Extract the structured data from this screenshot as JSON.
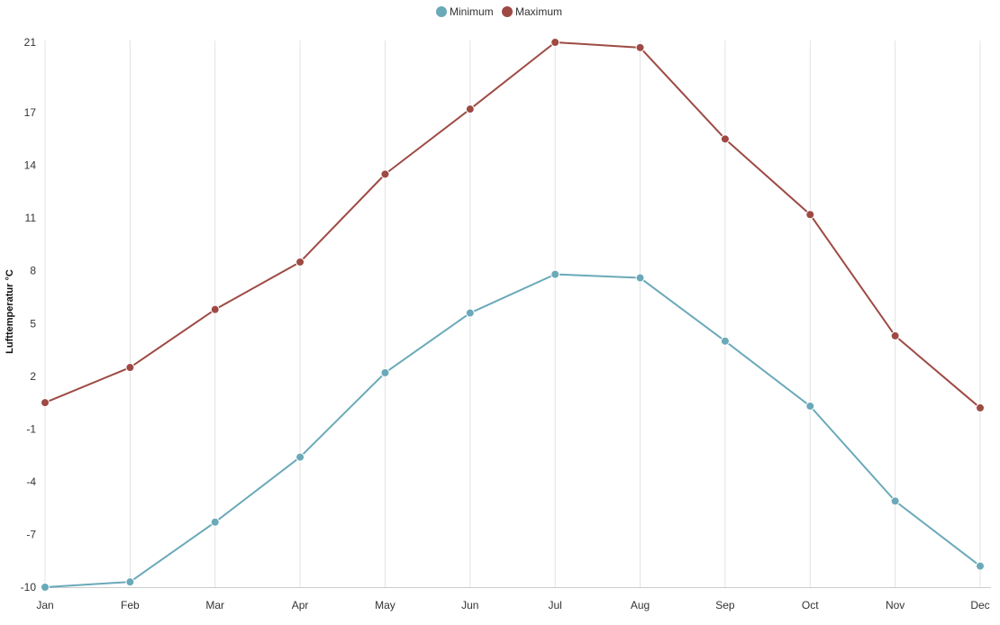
{
  "chart_data": {
    "type": "line",
    "title": "",
    "xlabel": "",
    "ylabel": "Lufttemperatur °C",
    "categories": [
      "Jan",
      "Feb",
      "Mar",
      "Apr",
      "May",
      "Jun",
      "Jul",
      "Aug",
      "Sep",
      "Oct",
      "Nov",
      "Dec"
    ],
    "series": [
      {
        "name": "Minimum",
        "color": "#6aa9b9",
        "values": [
          -10.0,
          -9.7,
          -6.3,
          -2.6,
          2.2,
          5.6,
          7.8,
          7.6,
          4.0,
          0.3,
          -5.1,
          -8.8
        ]
      },
      {
        "name": "Maximum",
        "color": "#9e4a44",
        "values": [
          0.5,
          2.5,
          5.8,
          8.5,
          13.5,
          17.2,
          21.0,
          20.7,
          15.5,
          11.2,
          4.3,
          0.2
        ]
      }
    ],
    "ylim": [
      -10,
      21
    ],
    "yticks": [
      "21",
      "17",
      "14",
      "11",
      "8",
      "5",
      "2",
      "-1",
      "-4",
      "-7",
      "-10"
    ],
    "legend": "top-center",
    "grid": "vertical"
  }
}
